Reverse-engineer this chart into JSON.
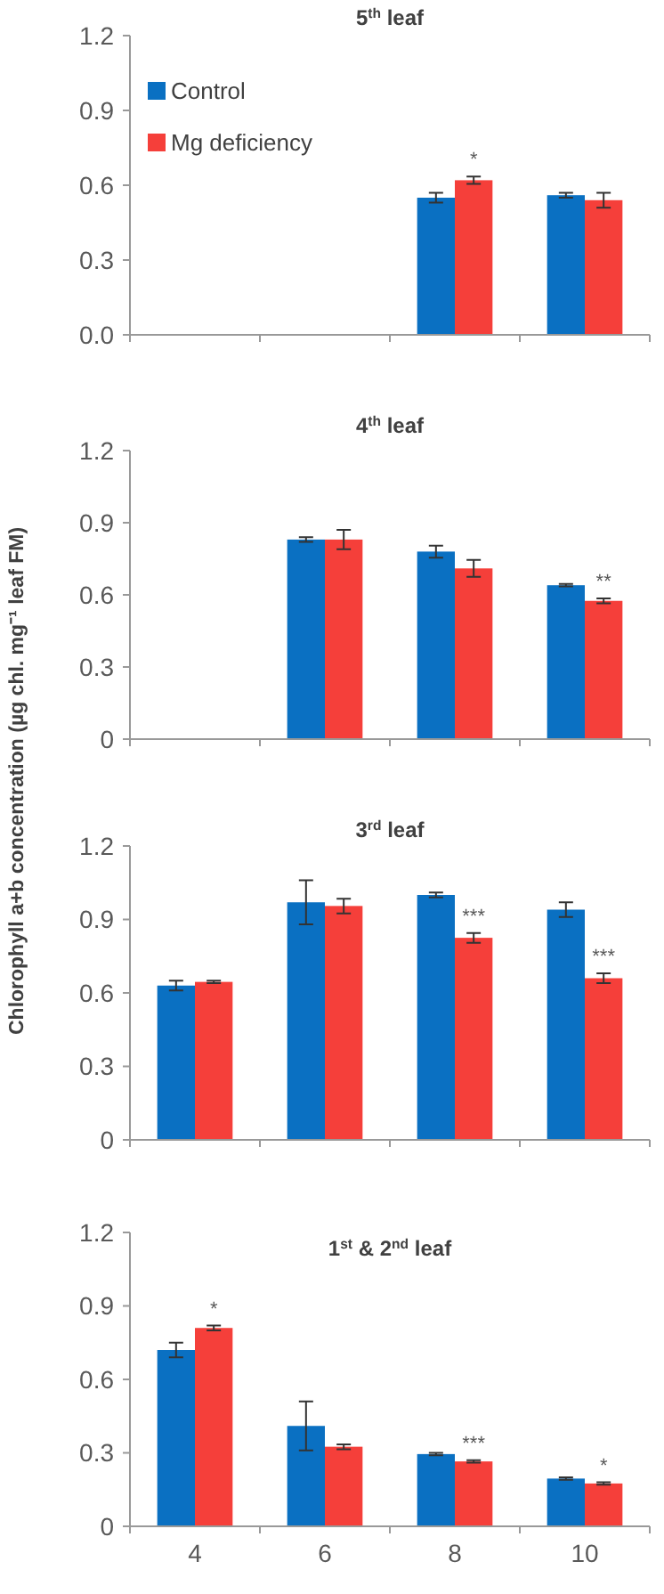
{
  "chart_data": [
    {
      "type": "bar",
      "title": "5$^{th}$ leaf",
      "categories": [
        "4",
        "6",
        "8",
        "10"
      ],
      "legend": "top left",
      "tick_labels": "y",
      "ylim": [
        0,
        1.2
      ],
      "yticks": [
        {
          "value": 0,
          "label": "0.0"
        },
        0.3,
        0.6,
        0.9,
        1.2
      ],
      "series": [
        {
          "name": "Control",
          "color": "#0a70c2",
          "values": [
            null,
            null,
            0.55,
            0.56
          ],
          "errors": [
            null,
            null,
            0.02,
            0.01
          ]
        },
        {
          "name": "Mg deficiency",
          "color": "#f53f3a",
          "values": [
            null,
            null,
            0.62,
            0.54
          ],
          "errors": [
            null,
            null,
            0.015,
            0.03
          ]
        }
      ],
      "annotations": [
        {
          "text": "*",
          "x": "8",
          "y": 0.635
        }
      ]
    },
    {
      "type": "bar",
      "title": "4$^{th}$ leaf",
      "categories": [
        "4",
        "6",
        "8",
        "10"
      ],
      "tick_labels": "y",
      "ylim": [
        0,
        1.2
      ],
      "yticks": [
        0,
        0.3,
        0.6,
        0.9,
        1.2
      ],
      "ylabel": "Chlorophyll a+b concentration (µg chl. mg⁻¹ leaf FM)",
      "series": [
        {
          "color": "#0a70c2",
          "values": [
            null,
            0.83,
            0.78,
            0.64
          ],
          "errors": [
            null,
            0.01,
            0.025,
            0.005
          ]
        },
        {
          "color": "#f53f3a",
          "values": [
            null,
            0.83,
            0.71,
            0.575
          ],
          "errors": [
            null,
            0.04,
            0.035,
            0.01
          ]
        }
      ],
      "annotations": [
        {
          "text": "**",
          "x": "10",
          "y": 0.585
        }
      ]
    },
    {
      "type": "bar",
      "title": "3$^{rd}$ leaf",
      "categories": [
        "4",
        "6",
        "8",
        "10"
      ],
      "tick_labels": "y",
      "ylim": [
        0,
        1.2
      ],
      "yticks": [
        0,
        0.3,
        0.6,
        0.9,
        1.2
      ],
      "series": [
        {
          "color": "#0a70c2",
          "values": [
            0.63,
            0.97,
            1.0,
            0.94
          ],
          "errors": [
            0.02,
            0.09,
            0.01,
            0.03
          ]
        },
        {
          "color": "#f53f3a",
          "values": [
            0.645,
            0.955,
            0.825,
            0.66
          ],
          "errors": [
            0.005,
            0.03,
            0.02,
            0.02
          ]
        }
      ],
      "annotations": [
        {
          "text": "***",
          "x": "8",
          "y": 0.845
        },
        {
          "text": "***",
          "x": "10",
          "y": 0.68
        }
      ]
    },
    {
      "type": "bar",
      "title": "1$^{st}$ & 2$^{nd}$ leaf",
      "categories": [
        "4",
        "6",
        "8",
        "10"
      ],
      "ylim": [
        0,
        1.2
      ],
      "yticks": [
        0,
        0.3,
        0.6,
        0.9,
        1.2
      ],
      "series": [
        {
          "color": "#0a70c2",
          "values": [
            0.72,
            0.41,
            0.295,
            0.195
          ],
          "errors": [
            0.03,
            0.1,
            0.005,
            0.005
          ]
        },
        {
          "color": "#f53f3a",
          "values": [
            0.81,
            0.325,
            0.265,
            0.175
          ],
          "errors": [
            0.01,
            0.01,
            0.005,
            0.005
          ]
        }
      ],
      "annotations": [
        {
          "text": "*",
          "x": "4",
          "y": 0.82
        },
        {
          "text": "***",
          "x": "8",
          "y": 0.27
        },
        {
          "text": "*",
          "x": "10",
          "y": 0.18
        }
      ]
    }
  ]
}
